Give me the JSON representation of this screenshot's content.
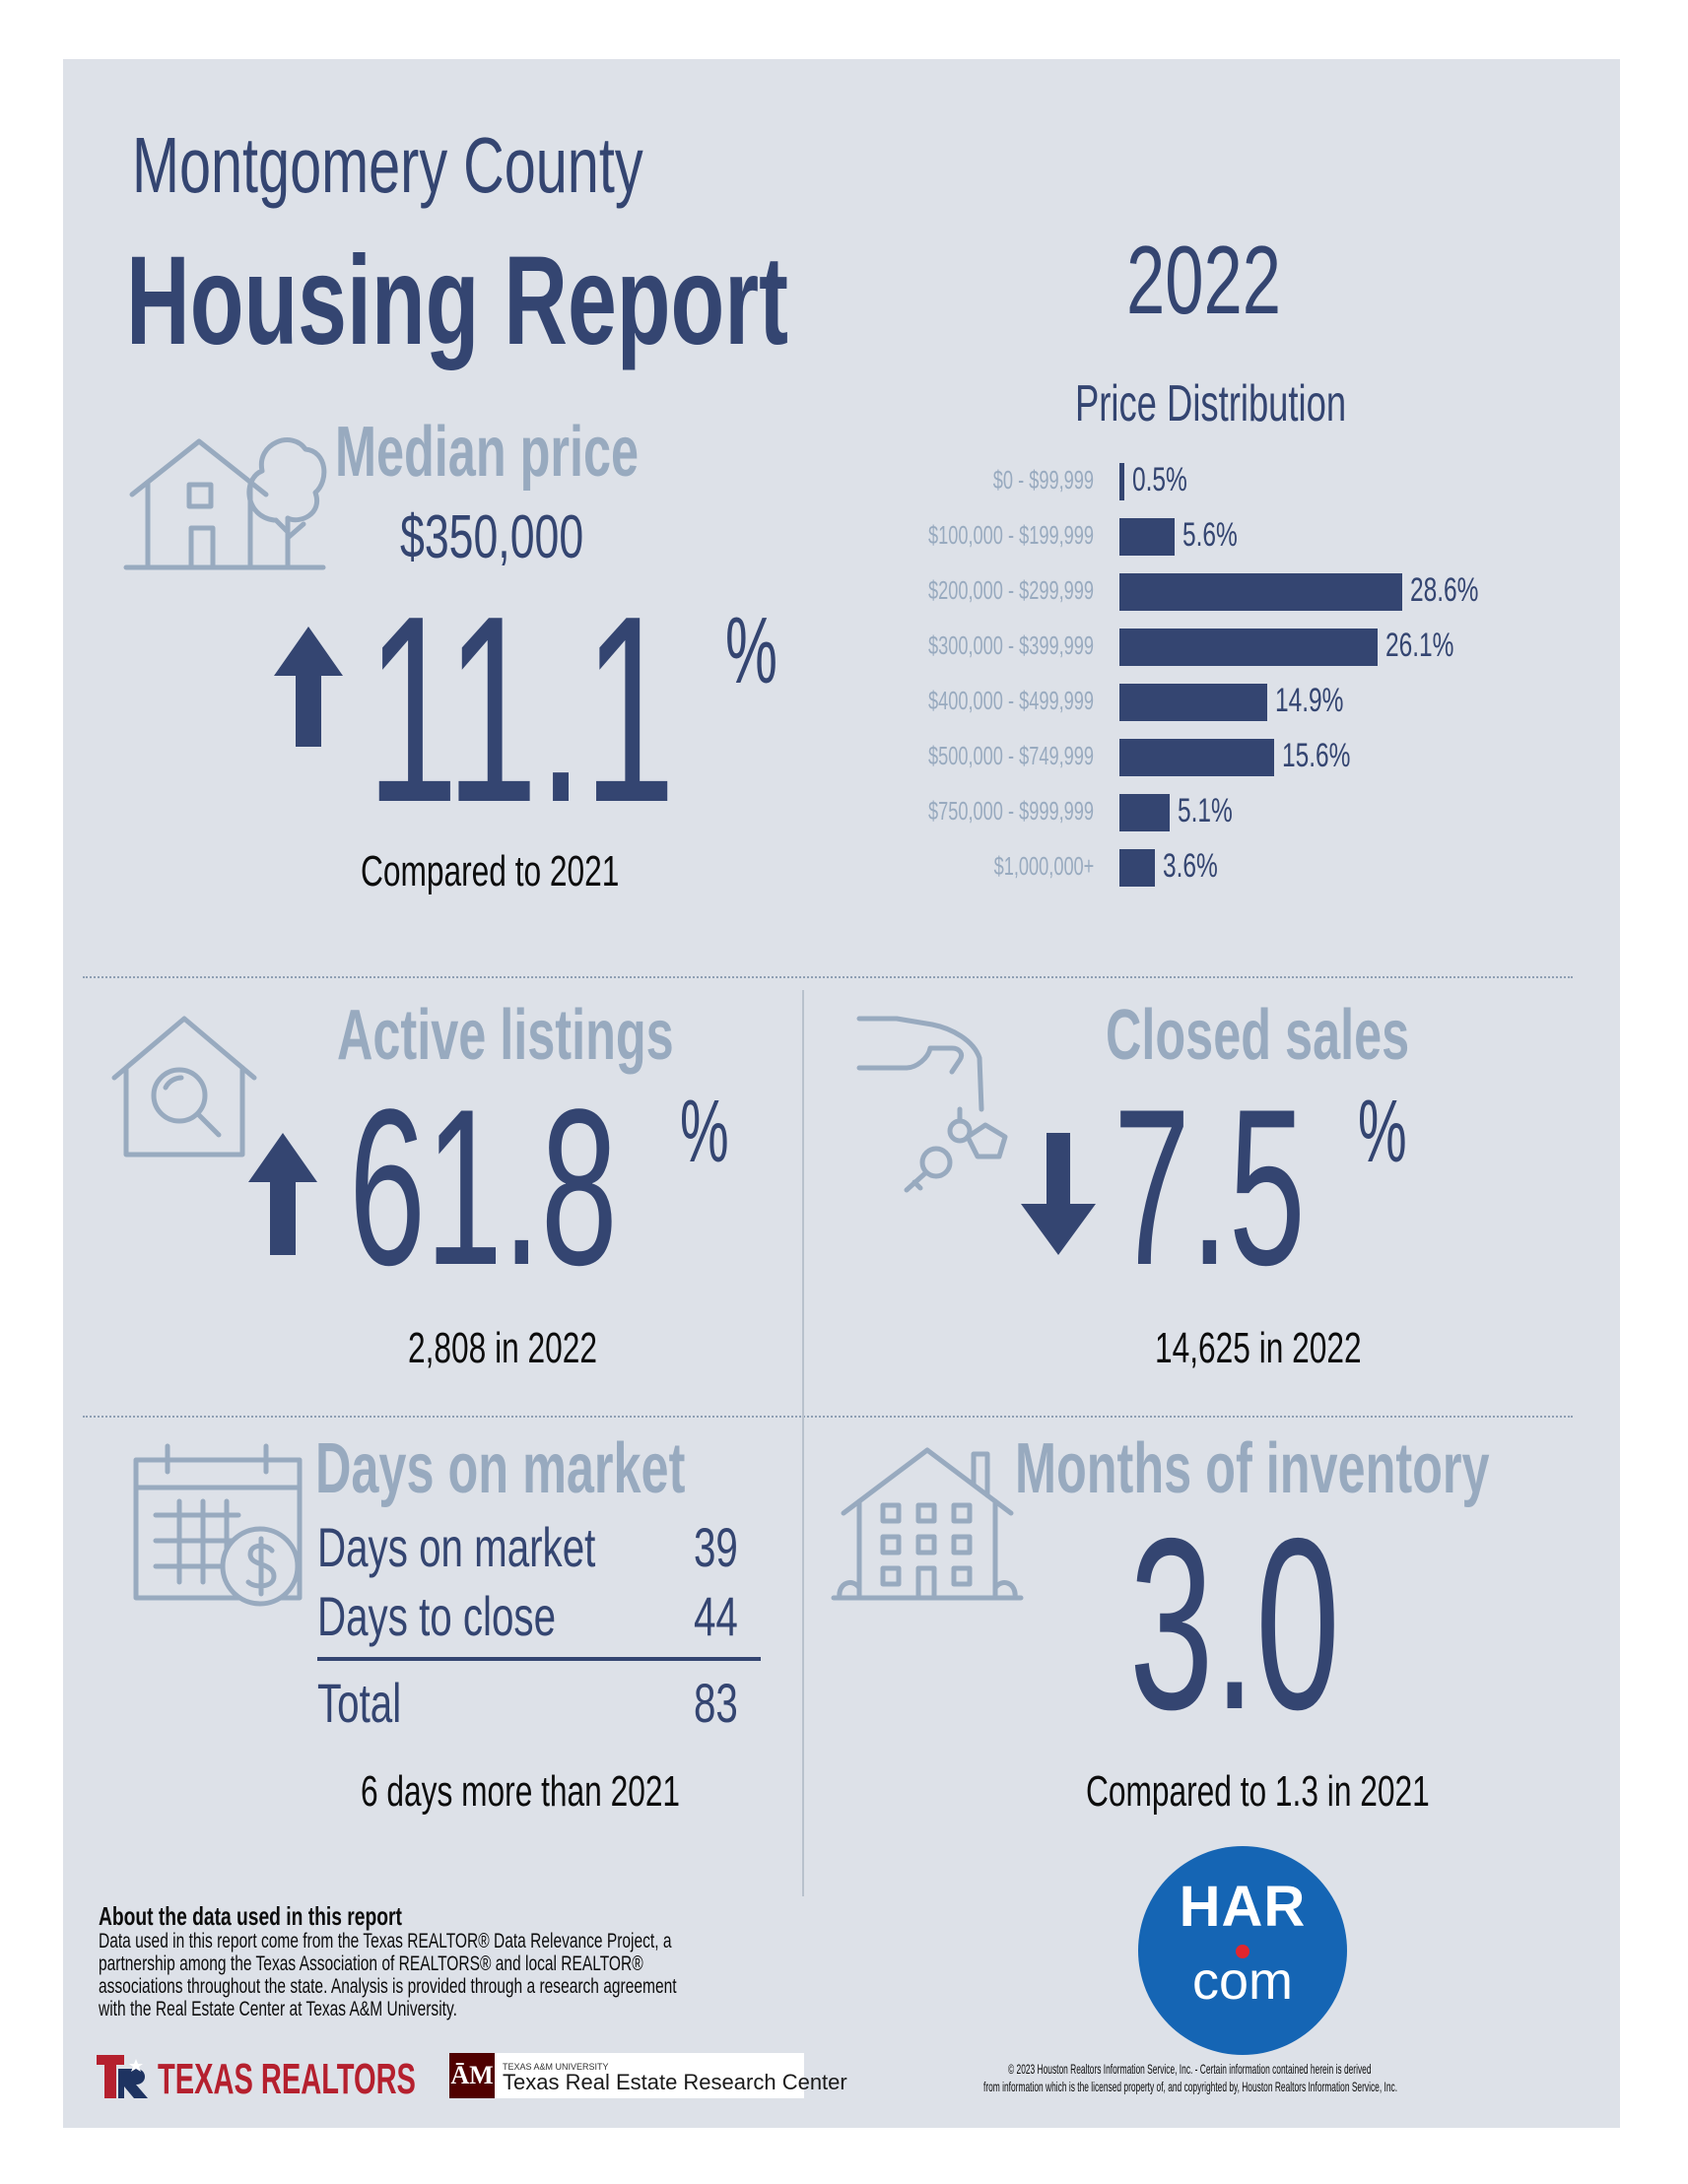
{
  "header": {
    "county": "Montgomery County",
    "title": "Housing Report",
    "year": "2022"
  },
  "median_price": {
    "heading": "Median price",
    "value": "$350,000",
    "change": "11.1",
    "unit": "%",
    "direction": "up",
    "caption": "Compared to 2021"
  },
  "chart_data": {
    "type": "bar",
    "title": "Price Distribution",
    "orientation": "horizontal",
    "categories": [
      "$0 - $99,999",
      "$100,000 - $199,999",
      "$200,000 - $299,999",
      "$300,000 - $399,999",
      "$400,000 - $499,999",
      "$500,000 - $749,999",
      "$750,000 - $999,999",
      "$1,000,000+"
    ],
    "values": [
      0.5,
      5.6,
      28.6,
      26.1,
      14.9,
      15.6,
      5.1,
      3.6
    ],
    "value_labels": [
      "0.5%",
      "5.6%",
      "28.6%",
      "26.1%",
      "14.9%",
      "15.6%",
      "5.1%",
      "3.6%"
    ],
    "color": "#344571"
  },
  "active_listings": {
    "heading": "Active listings",
    "change": "61.8",
    "unit": "%",
    "direction": "up",
    "caption": "2,808 in 2022"
  },
  "closed_sales": {
    "heading": "Closed sales",
    "change": "7.5",
    "unit": "%",
    "direction": "down",
    "caption": "14,625 in 2022"
  },
  "days_on_market": {
    "heading": "Days on market",
    "rows": [
      {
        "label": "Days on market",
        "value": "39"
      },
      {
        "label": "Days to close",
        "value": "44"
      }
    ],
    "total": {
      "label": "Total",
      "value": "83"
    },
    "caption": "6 days more than 2021"
  },
  "months_inventory": {
    "heading": "Months of inventory",
    "value": "3.0",
    "caption": "Compared to 1.3 in 2021"
  },
  "about": {
    "heading": "About the data used in this report",
    "lines": [
      "Data used in this report come from the Texas REALTOR® Data Relevance Project, a",
      "partnership among the Texas Association of REALTORS® and local REALTOR®",
      "associations throughout the state. Analysis is provided through a research agreement",
      "with the Real Estate Center at Texas A&M University."
    ]
  },
  "logos": {
    "texas_realtors": "TEXAS REALTORS",
    "tamu_small": "TEXAS A&M UNIVERSITY",
    "tamu_center": "Texas Real Estate Research Center",
    "har_top": "HAR",
    "har_bottom": "com"
  },
  "copyright": {
    "line1": "© 2023 Houston Realtors Information Service, Inc. - Certain information contained herein is derived",
    "line2": "from information which is the licensed property of, and copyrighted by, Houston Realtors Information Service, Inc."
  },
  "colors": {
    "navy": "#344571",
    "slate_gray": "#98aabf",
    "background": "#dde1e8",
    "har_blue": "#1565b4",
    "har_dot": "#e0262e"
  }
}
